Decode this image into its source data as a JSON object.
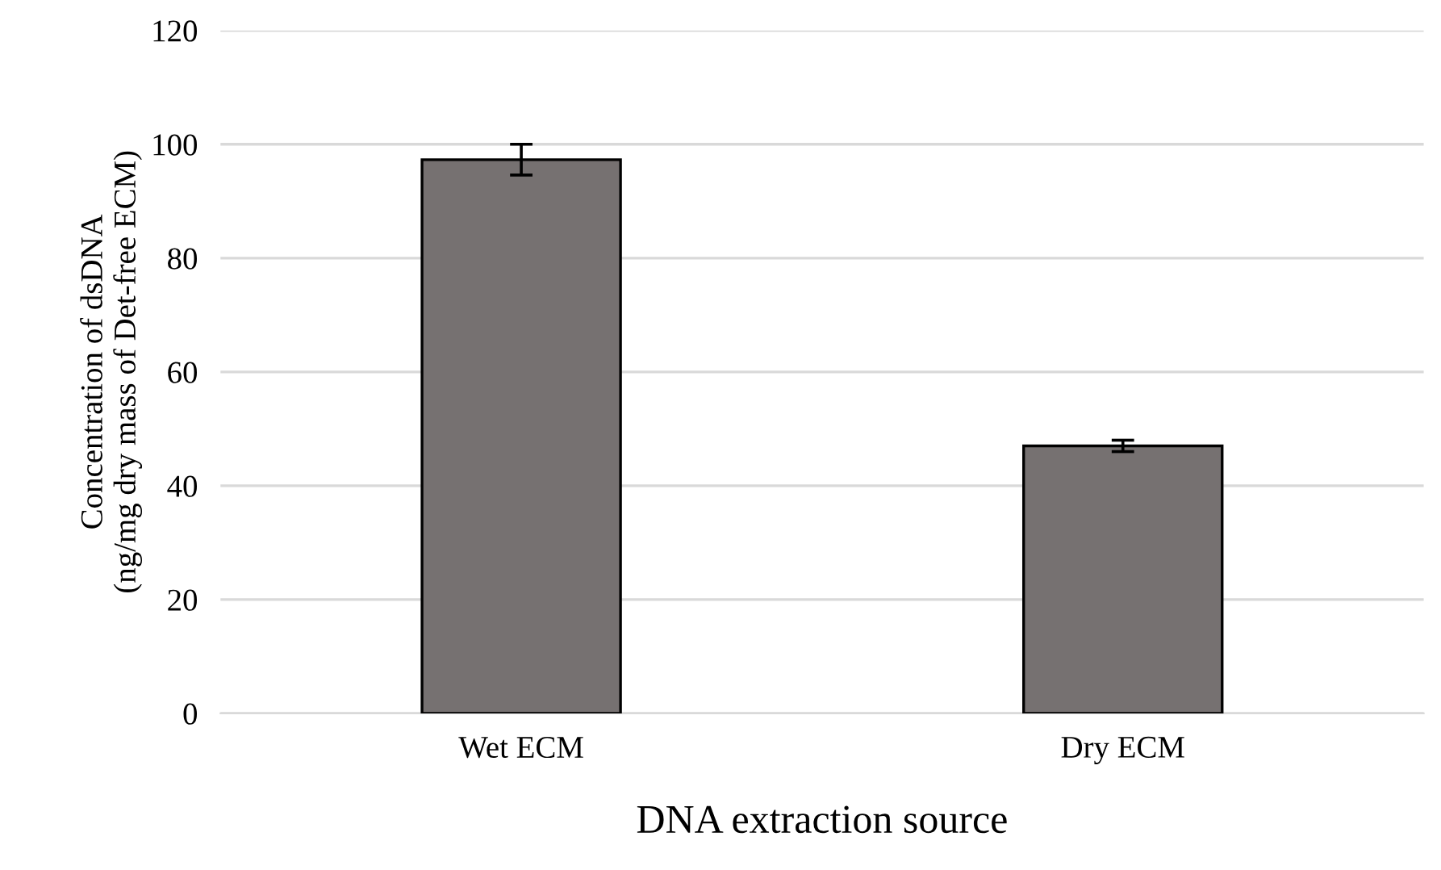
{
  "chart_data": {
    "type": "bar",
    "xlabel": "DNA extraction source",
    "ylabel": "Concentration of dsDNA\n(ng/mg dry mass of Det-free ECM)",
    "categories": [
      "Wet ECM",
      "Dry ECM"
    ],
    "values": [
      97.3,
      47.0
    ],
    "errors": [
      2.7,
      1.0
    ],
    "color": "#767171",
    "ylim": [
      0,
      120
    ],
    "yticks": [
      0,
      20,
      40,
      60,
      80,
      100,
      120
    ],
    "grid": "y",
    "legend": false
  }
}
